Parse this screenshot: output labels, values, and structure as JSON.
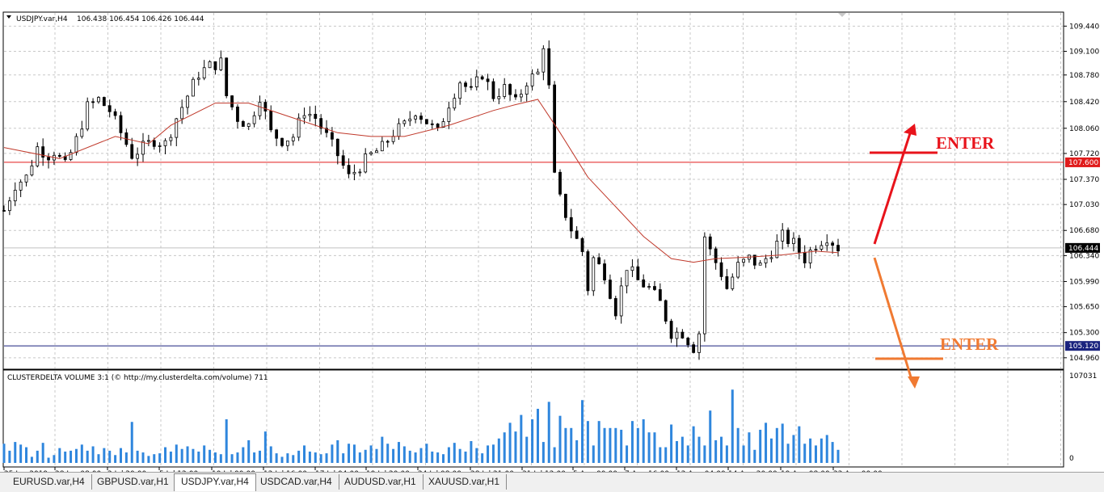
{
  "chart_header": {
    "symbol": "USDJPY.var,H4",
    "ohlc": "106.438 106.454 106.426 106.444"
  },
  "indicator_header": "CLUSTERDELTA VOLUME 3:1 (© http://my.clusterdelta.com/volume) 711",
  "colors": {
    "background": "#ffffff",
    "grid": "#c8c8c8",
    "candle": "#000000",
    "moving_average": "#c0392b",
    "resistance_line": "#e01b1b",
    "support_line": "#1a237e",
    "volume_bar": "#2f86dd",
    "enter_up": "#e8131b",
    "enter_down": "#f07a32"
  },
  "annotations": {
    "enter_top": "ENTER",
    "enter_bottom": "ENTER"
  },
  "chart_data": {
    "type": "line",
    "price_axis": {
      "ticks": [
        "109.440",
        "109.100",
        "108.780",
        "108.420",
        "108.060",
        "107.720",
        "107.370",
        "107.030",
        "106.680",
        "106.340",
        "105.990",
        "105.650",
        "105.300",
        "104.960"
      ],
      "ylim": [
        104.86,
        109.52
      ]
    },
    "levels": [
      {
        "name": "resistance",
        "price": 107.6,
        "label": "107.600"
      },
      {
        "name": "support",
        "price": 105.12,
        "label": "105.120"
      },
      {
        "name": "current",
        "price": 106.444,
        "label": "106.444"
      }
    ],
    "time_axis": [
      "25 Jun 2019",
      "28 Jun 08:00",
      "2 Jul 20:00",
      "5 Jul 12:00",
      "10 Jul 00:00",
      "12 Jul 16:00",
      "17 Jul 04:00",
      "19 Jul 20:00",
      "24 Jul 08:00",
      "28 Jul 21:00",
      "31 Jul 12:00",
      "5 Aug 00:00",
      "7 Aug 16:00",
      "12 Aug 04:00",
      "14 Aug 20:00",
      "19 Aug 08:00",
      "22 Aug 00:00"
    ],
    "price_path": [
      [
        0,
        106.95
      ],
      [
        2,
        107.3
      ],
      [
        4,
        107.4
      ],
      [
        6,
        107.8
      ],
      [
        8,
        107.7
      ],
      [
        9,
        107.75
      ],
      [
        11,
        107.55
      ],
      [
        13,
        107.9
      ],
      [
        15,
        108.35
      ],
      [
        17,
        108.45
      ],
      [
        19,
        108.3
      ],
      [
        21,
        108.0
      ],
      [
        23,
        107.7
      ],
      [
        25,
        107.8
      ],
      [
        27,
        107.9
      ],
      [
        29,
        107.85
      ],
      [
        31,
        108.2
      ],
      [
        33,
        108.5
      ],
      [
        35,
        108.8
      ],
      [
        37,
        108.9
      ],
      [
        39,
        108.95
      ],
      [
        40,
        108.5
      ],
      [
        42,
        108.2
      ],
      [
        44,
        108.1
      ],
      [
        46,
        108.5
      ],
      [
        48,
        108.0
      ],
      [
        50,
        107.9
      ],
      [
        52,
        107.95
      ],
      [
        54,
        108.3
      ],
      [
        56,
        108.2
      ],
      [
        58,
        107.95
      ],
      [
        60,
        107.7
      ],
      [
        62,
        107.4
      ],
      [
        64,
        107.55
      ],
      [
        66,
        107.7
      ],
      [
        68,
        107.8
      ],
      [
        70,
        108.0
      ],
      [
        72,
        108.1
      ],
      [
        74,
        108.3
      ],
      [
        76,
        108.15
      ],
      [
        78,
        108.0
      ],
      [
        80,
        108.4
      ],
      [
        82,
        108.7
      ],
      [
        84,
        108.55
      ],
      [
        86,
        108.8
      ],
      [
        88,
        108.5
      ],
      [
        90,
        108.6
      ],
      [
        92,
        108.4
      ],
      [
        94,
        108.7
      ],
      [
        96,
        108.8
      ],
      [
        97,
        109.2
      ],
      [
        98,
        108.6
      ],
      [
        99,
        107.4
      ],
      [
        100,
        107.1
      ],
      [
        102,
        106.7
      ],
      [
        104,
        106.4
      ],
      [
        105,
        105.9
      ],
      [
        106,
        106.3
      ],
      [
        108,
        106.1
      ],
      [
        110,
        105.6
      ],
      [
        112,
        106.2
      ],
      [
        114,
        106.0
      ],
      [
        116,
        105.9
      ],
      [
        118,
        105.7
      ],
      [
        120,
        105.3
      ],
      [
        122,
        105.3
      ],
      [
        124,
        105.1
      ],
      [
        125,
        105.3
      ],
      [
        126,
        106.6
      ],
      [
        127,
        106.4
      ],
      [
        129,
        106.1
      ],
      [
        130,
        105.9
      ],
      [
        132,
        106.2
      ],
      [
        134,
        106.3
      ],
      [
        136,
        106.2
      ],
      [
        138,
        106.4
      ],
      [
        140,
        106.6
      ],
      [
        142,
        106.5
      ],
      [
        144,
        106.3
      ],
      [
        146,
        106.5
      ],
      [
        148,
        106.6
      ],
      [
        150,
        106.45
      ]
    ],
    "ma_path": [
      [
        0,
        107.8
      ],
      [
        10,
        107.65
      ],
      [
        20,
        107.95
      ],
      [
        26,
        107.85
      ],
      [
        30,
        108.1
      ],
      [
        38,
        108.4
      ],
      [
        44,
        108.4
      ],
      [
        52,
        108.2
      ],
      [
        60,
        108.0
      ],
      [
        66,
        107.95
      ],
      [
        72,
        107.95
      ],
      [
        80,
        108.1
      ],
      [
        88,
        108.3
      ],
      [
        92,
        108.38
      ],
      [
        96,
        108.45
      ],
      [
        100,
        108.0
      ],
      [
        105,
        107.4
      ],
      [
        110,
        107.0
      ],
      [
        115,
        106.6
      ],
      [
        120,
        106.3
      ],
      [
        124,
        106.25
      ],
      [
        128,
        106.3
      ],
      [
        134,
        106.32
      ],
      [
        140,
        106.35
      ],
      [
        146,
        106.4
      ],
      [
        150,
        106.38
      ]
    ],
    "volume_axis": {
      "ticks": [
        "107031",
        "0"
      ],
      "max": 107031
    },
    "volume": [
      22,
      14,
      24,
      21,
      18,
      7,
      14,
      23,
      6,
      9,
      17,
      13,
      14,
      16,
      21,
      14,
      19,
      10,
      17,
      14,
      9,
      17,
      12,
      47,
      14,
      12,
      8,
      10,
      11,
      18,
      13,
      21,
      16,
      19,
      16,
      13,
      20,
      15,
      12,
      10,
      50,
      10,
      12,
      18,
      26,
      12,
      14,
      36,
      19,
      11,
      7,
      11,
      9,
      14,
      20,
      13,
      12,
      10,
      11,
      21,
      26,
      11,
      22,
      21,
      12,
      15,
      20,
      16,
      30,
      22,
      16,
      24,
      19,
      14,
      12,
      17,
      22,
      13,
      12,
      10,
      18,
      23,
      16,
      13,
      25,
      17,
      11,
      20,
      21,
      28,
      35,
      46,
      36,
      55,
      30,
      50,
      62,
      24,
      70,
      18,
      54,
      40,
      40,
      26,
      72,
      48,
      20,
      48,
      40,
      40,
      40,
      38,
      20,
      48,
      40,
      50,
      35,
      35,
      18,
      18,
      44,
      25,
      30,
      20,
      42,
      30,
      20,
      60,
      26,
      30,
      20,
      84,
      40,
      20,
      35,
      15,
      38,
      46,
      28,
      40,
      45,
      22,
      32,
      42,
      22,
      28,
      20,
      28,
      32,
      24,
      15
    ]
  },
  "tabs": [
    "EURUSD.var,H4",
    "GBPUSD.var,H1",
    "USDJPY.var,H4",
    "USDCAD.var,H4",
    "AUDUSD.var,H1",
    "XAUUSD.var,H1"
  ],
  "active_tab": "USDJPY.var,H4"
}
